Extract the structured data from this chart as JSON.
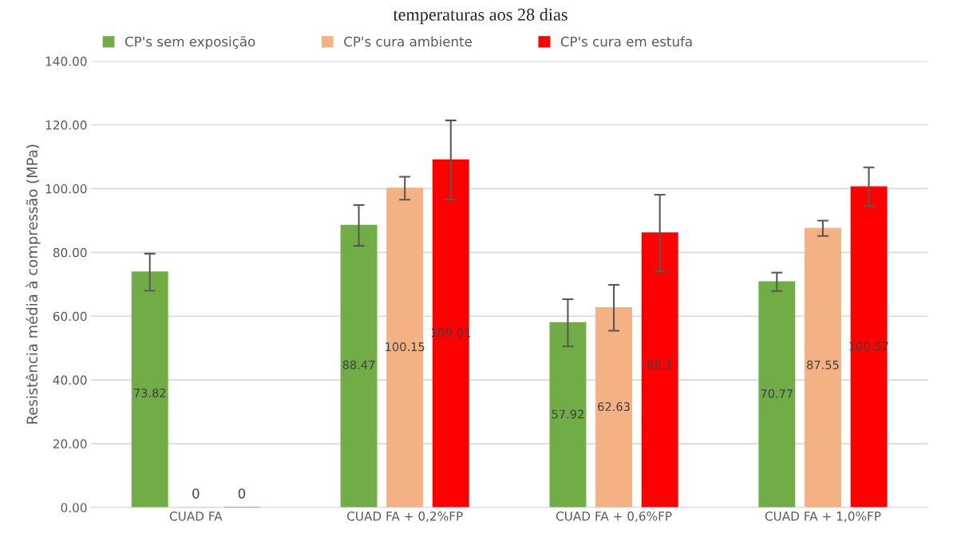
{
  "chart_data": {
    "type": "bar",
    "title": "temperaturas aos 28 dias",
    "ylabel": "Resistência média à compressão (MPa)",
    "categories": [
      "CUAD FA",
      "CUAD FA + 0,2%FP",
      "CUAD FA + 0,6%FP",
      "CUAD FA + 1,0%FP"
    ],
    "series": [
      {
        "name": "CP's sem exposição",
        "color": "#70ad47",
        "values": [
          73.82,
          88.47,
          57.92,
          70.77
        ],
        "errors": [
          5.8,
          6.4,
          7.4,
          2.9
        ]
      },
      {
        "name": "CP's cura ambiente",
        "color": "#f4b183",
        "values": [
          0,
          100.15,
          62.63,
          87.55
        ],
        "errors": [
          null,
          3.6,
          7.2,
          2.4
        ]
      },
      {
        "name": "CP's cura em estufa",
        "color": "#ff0000",
        "values": [
          0,
          109.01,
          86.1,
          100.57
        ],
        "errors": [
          null,
          12.4,
          12.0,
          6.1
        ]
      }
    ],
    "ylim": [
      0,
      140
    ],
    "yticks": [
      {
        "value": 0,
        "label": "0.00"
      },
      {
        "value": 20,
        "label": "20.00"
      },
      {
        "value": 40,
        "label": "40.00"
      },
      {
        "value": 60,
        "label": "60.00"
      },
      {
        "value": 80,
        "label": "80.00"
      },
      {
        "value": 100,
        "label": "100.00"
      },
      {
        "value": 120,
        "label": "120.00"
      },
      {
        "value": 140,
        "label": "140.00"
      }
    ],
    "grid": "y",
    "legend": "top",
    "data_labels": true
  }
}
